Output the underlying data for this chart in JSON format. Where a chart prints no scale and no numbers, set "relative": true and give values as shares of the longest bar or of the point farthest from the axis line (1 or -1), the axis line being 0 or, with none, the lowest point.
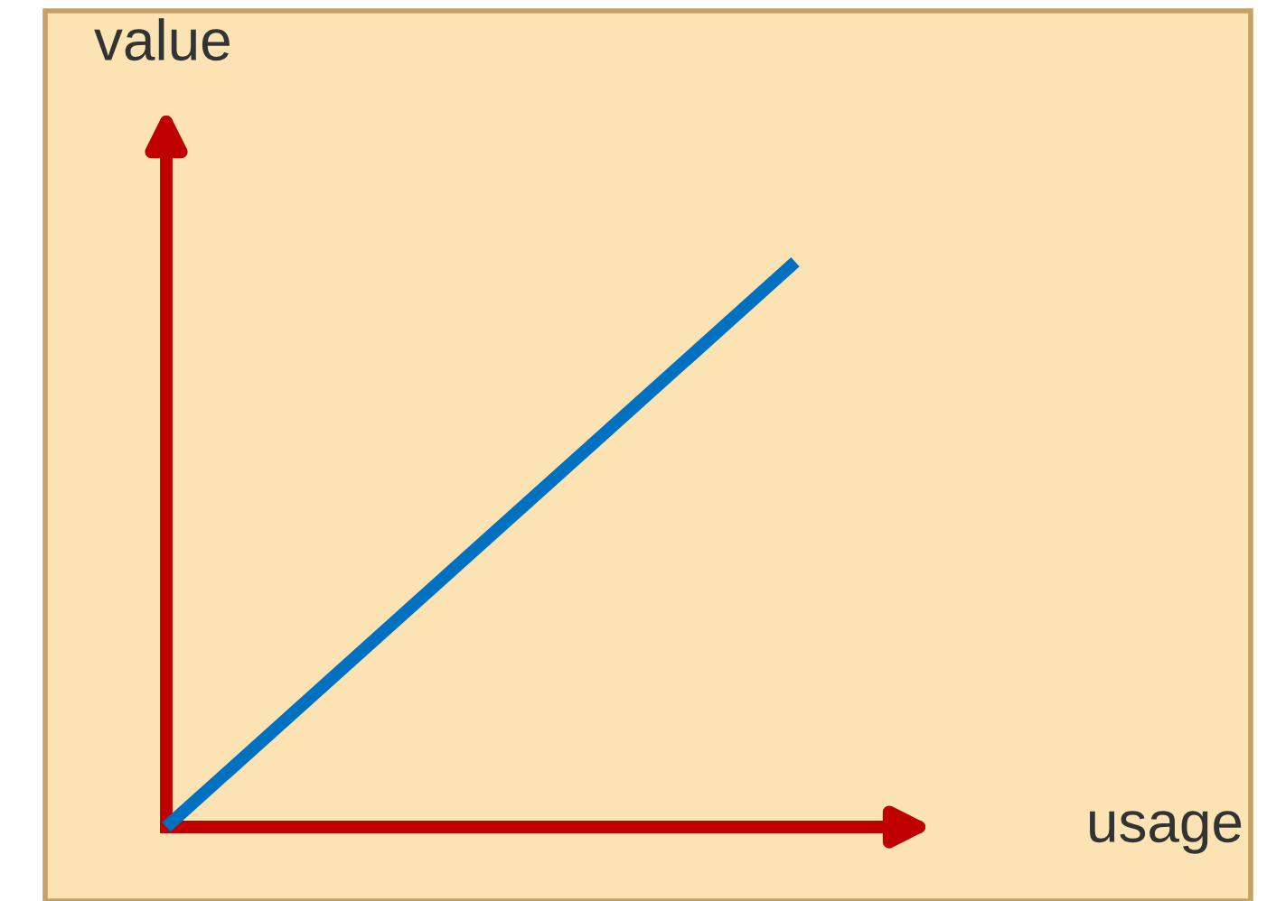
{
  "chart_data": {
    "type": "line",
    "xlabel": "usage",
    "ylabel": "value",
    "relative": true,
    "categories": [
      null,
      null
    ],
    "series": [
      {
        "color": "#0070c0",
        "values": [
          0,
          1
        ]
      }
    ],
    "line_style": "solid"
  }
}
